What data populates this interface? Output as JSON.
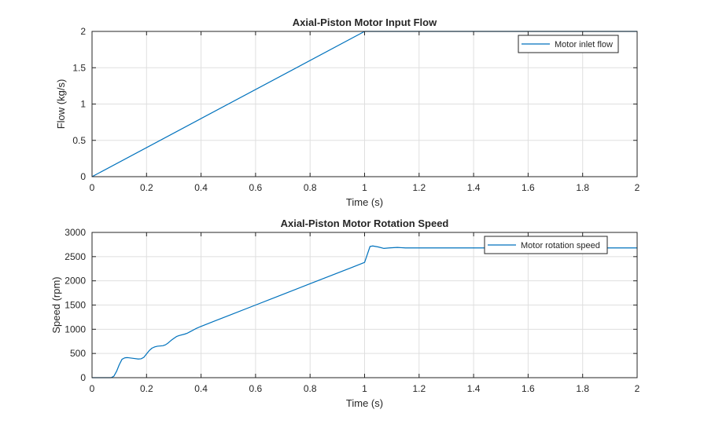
{
  "chart_data": [
    {
      "type": "line",
      "title": "Axial-Piston Motor Input Flow",
      "xlabel": "Time (s)",
      "ylabel": "Flow (kg/s)",
      "xlim": [
        0,
        2
      ],
      "ylim": [
        0,
        2
      ],
      "xticks": [
        "0",
        "0.2",
        "0.4",
        "0.6",
        "0.8",
        "1",
        "1.2",
        "1.4",
        "1.6",
        "1.8",
        "2"
      ],
      "yticks": [
        "0",
        "0.5",
        "1",
        "1.5",
        "2"
      ],
      "grid": true,
      "legend_position": "top-right",
      "series": [
        {
          "name": "Motor inlet flow",
          "color": "#0072BD",
          "x": [
            0,
            1,
            2
          ],
          "y": [
            0,
            2,
            2
          ]
        }
      ]
    },
    {
      "type": "line",
      "title": "Axial-Piston Motor Rotation Speed",
      "xlabel": "Time (s)",
      "ylabel": "Speed (rpm)",
      "xlim": [
        0,
        2
      ],
      "ylim": [
        0,
        3000
      ],
      "xticks": [
        "0",
        "0.2",
        "0.4",
        "0.6",
        "0.8",
        "1",
        "1.2",
        "1.4",
        "1.6",
        "1.8",
        "2"
      ],
      "yticks": [
        "0",
        "500",
        "1000",
        "1500",
        "2000",
        "2500",
        "3000"
      ],
      "grid": true,
      "legend_position": "top-right",
      "series": [
        {
          "name": "Motor rotation speed",
          "color": "#0072BD",
          "x": [
            0,
            0.07,
            0.08,
            0.09,
            0.1,
            0.11,
            0.12,
            0.13,
            0.15,
            0.17,
            0.18,
            0.19,
            0.2,
            0.21,
            0.22,
            0.23,
            0.24,
            0.26,
            0.27,
            0.28,
            0.29,
            0.3,
            0.31,
            0.32,
            0.34,
            0.35,
            0.36,
            0.38,
            0.4,
            0.45,
            0.5,
            0.6,
            0.7,
            0.8,
            0.9,
            0.95,
            1.0,
            1.02,
            1.03,
            1.05,
            1.07,
            1.09,
            1.12,
            1.15,
            1.2,
            1.3,
            1.5,
            2.0
          ],
          "y": [
            0,
            0,
            30,
            130,
            270,
            380,
            410,
            415,
            400,
            385,
            390,
            420,
            490,
            560,
            610,
            635,
            650,
            660,
            680,
            720,
            770,
            810,
            850,
            870,
            900,
            920,
            950,
            1010,
            1060,
            1170,
            1280,
            1500,
            1720,
            1940,
            2160,
            2270,
            2380,
            2710,
            2720,
            2700,
            2670,
            2680,
            2690,
            2680,
            2680,
            2680,
            2680,
            2680
          ]
        }
      ]
    }
  ]
}
